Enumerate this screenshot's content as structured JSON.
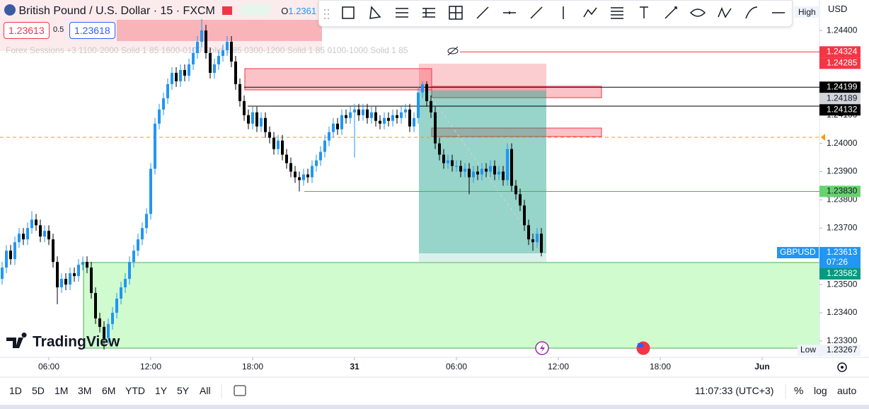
{
  "header": {
    "symbol": "British Pound / U.S. Dollar · 15 · FXCM",
    "open_label": "O",
    "open_value": "1.2361",
    "sell_price": "1.23613",
    "spread": "0.5",
    "buy_price": "1.23618",
    "indicator": "Forex Sessions +3 1100-2000 Solid 1 85 1600-0100 Solid 1 85 0300-1200 Solid 1 85 0100-1000 Solid 1 85",
    "currency": "USD",
    "high_label": "High"
  },
  "logo": "TradingView",
  "bottom_bar": {
    "ranges": [
      "1D",
      "5D",
      "1M",
      "3M",
      "6M",
      "YTD",
      "1Y",
      "5Y",
      "All"
    ],
    "clock": "11:07:33 (UTC+3)",
    "percent": "%",
    "log": "log",
    "auto": "auto"
  },
  "chart_data": {
    "type": "candlestick",
    "symbol": "GBPUSD",
    "countdown": "07:26",
    "low_label": "Low",
    "up_color": "#2196f3",
    "down_color": "#000000",
    "x": [
      3.25,
      3.5,
      3.75,
      4,
      4.25,
      4.5,
      4.75,
      5,
      5.25,
      5.5,
      5.75,
      6,
      6.25,
      6.5,
      6.75,
      7,
      7.25,
      7.5,
      7.75,
      8,
      8.25,
      8.5,
      8.75,
      9,
      9.25,
      9.5,
      9.75,
      10,
      10.25,
      10.5,
      10.75,
      11,
      11.25,
      11.5,
      11.75,
      12,
      12.25,
      12.5,
      12.75,
      13,
      13.25,
      13.5,
      13.75,
      14,
      14.25,
      14.5,
      14.75,
      15,
      15.25,
      15.5,
      15.75,
      16,
      16.25,
      16.5,
      16.75,
      17,
      17.25,
      17.5,
      17.75,
      18,
      18.25,
      18.5,
      18.75,
      19,
      19.25,
      19.5,
      19.75,
      20,
      20.25,
      20.5,
      20.75,
      21,
      21.25,
      21.5,
      21.75,
      22,
      22.25,
      22.5,
      22.75,
      23,
      23.25,
      23.5,
      23.75,
      24,
      24.25,
      24.5,
      24.75,
      25,
      25.25,
      25.5,
      25.75,
      26,
      26.25,
      26.5,
      26.75,
      27,
      27.25,
      27.5,
      27.75,
      28,
      28.25,
      28.5,
      28.75,
      29,
      29.25,
      29.5,
      29.75,
      30,
      30.25,
      30.5,
      30.75,
      31,
      31.25,
      31.5,
      31.75,
      32,
      32.25,
      32.5,
      32.75,
      33,
      33.25,
      33.5,
      33.75,
      34,
      34.25,
      34.5,
      34.75,
      35
    ],
    "open": [
      1.2352,
      1.2356,
      1.2362,
      1.2359,
      1.2365,
      1.2368,
      1.2366,
      1.237,
      1.2373,
      1.2371,
      1.2367,
      1.2369,
      1.2366,
      1.2358,
      1.2349,
      1.2352,
      1.235,
      1.2354,
      1.2353,
      1.2357,
      1.2358,
      1.2356,
      1.2347,
      1.2338,
      1.2335,
      1.2331,
      1.2336,
      1.234,
      1.2345,
      1.2349,
      1.2352,
      1.2358,
      1.2362,
      1.2366,
      1.237,
      1.2375,
      1.2391,
      1.2407,
      1.2412,
      1.2416,
      1.2421,
      1.2425,
      1.2422,
      1.2426,
      1.2424,
      1.2428,
      1.2432,
      1.2436,
      1.244,
      1.2432,
      1.2425,
      1.2428,
      1.2431,
      1.2433,
      1.2436,
      1.2429,
      1.2421,
      1.2415,
      1.241,
      1.2407,
      1.2411,
      1.2406,
      1.2409,
      1.2404,
      1.2402,
      1.2398,
      1.2401,
      1.2396,
      1.2393,
      1.239,
      1.2388,
      1.2387,
      1.2389,
      1.2388,
      1.2392,
      1.2394,
      1.2397,
      1.2401,
      1.2404,
      1.2407,
      1.2405,
      1.241,
      1.2409,
      1.2411,
      1.2412,
      1.241,
      1.2412,
      1.2409,
      1.2411,
      1.2408,
      1.2407,
      1.2409,
      1.2408,
      1.241,
      1.2409,
      1.2411,
      1.2412,
      1.2406,
      1.2409,
      1.2418,
      1.2421,
      1.2415,
      1.2411,
      1.24,
      1.2396,
      1.2393,
      1.2394,
      1.2392,
      1.2392,
      1.239,
      1.2391,
      1.2388,
      1.239,
      1.2389,
      1.2391,
      1.239,
      1.2392,
      1.2389,
      1.239,
      1.2387,
      1.2398,
      1.2385,
      1.2382,
      1.2378,
      1.2371,
      1.2366,
      1.2365,
      1.2368
    ],
    "high": [
      1.2358,
      1.2364,
      1.2364,
      1.2367,
      1.237,
      1.237,
      1.2372,
      1.2376,
      1.2375,
      1.2373,
      1.2371,
      1.2371,
      1.2368,
      1.236,
      1.2354,
      1.2354,
      1.2356,
      1.2356,
      1.2359,
      1.236,
      1.236,
      1.2358,
      1.2349,
      1.234,
      1.2337,
      1.2338,
      1.2342,
      1.2347,
      1.2351,
      1.2354,
      1.236,
      1.2364,
      1.2368,
      1.2372,
      1.2377,
      1.2393,
      1.2409,
      1.2414,
      1.2418,
      1.2423,
      1.2427,
      1.2427,
      1.2428,
      1.2428,
      1.243,
      1.2434,
      1.2438,
      1.2444,
      1.2442,
      1.2434,
      1.243,
      1.2433,
      1.2435,
      1.2438,
      1.2438,
      1.2431,
      1.2423,
      1.2417,
      1.2412,
      1.2413,
      1.2413,
      1.2411,
      1.2411,
      1.2406,
      1.2404,
      1.2403,
      1.2403,
      1.2398,
      1.2395,
      1.2392,
      1.239,
      1.2391,
      1.2391,
      1.2394,
      1.2396,
      1.2399,
      1.2403,
      1.2406,
      1.2409,
      1.2409,
      1.2412,
      1.2412,
      1.2413,
      1.2414,
      1.2414,
      1.2414,
      1.2414,
      1.2413,
      1.2413,
      1.241,
      1.2411,
      1.2411,
      1.2412,
      1.2412,
      1.2413,
      1.2414,
      1.2414,
      1.2411,
      1.242,
      1.2422,
      1.2422,
      1.2417,
      1.2413,
      1.2402,
      1.2398,
      1.2396,
      1.2396,
      1.2394,
      1.2394,
      1.2393,
      1.2393,
      1.2392,
      1.2392,
      1.2393,
      1.2393,
      1.2394,
      1.2394,
      1.2392,
      1.2392,
      1.24,
      1.24,
      1.2387,
      1.2384,
      1.238,
      1.2373,
      1.2368,
      1.237,
      1.237
    ],
    "low": [
      1.235,
      1.2354,
      1.2357,
      1.2357,
      1.2363,
      1.2364,
      1.2364,
      1.2368,
      1.2369,
      1.2365,
      1.2365,
      1.2364,
      1.2356,
      1.2343,
      1.2347,
      1.2348,
      1.2348,
      1.2351,
      1.2351,
      1.2355,
      1.2354,
      1.2345,
      1.2336,
      1.2333,
      1.2327,
      1.2329,
      1.2334,
      1.2338,
      1.2343,
      1.2347,
      1.235,
      1.2356,
      1.236,
      1.2364,
      1.2368,
      1.2373,
      1.2389,
      1.2405,
      1.241,
      1.2414,
      1.2419,
      1.242,
      1.242,
      1.2422,
      1.2422,
      1.2426,
      1.243,
      1.2434,
      1.243,
      1.2423,
      1.2423,
      1.2426,
      1.2429,
      1.2431,
      1.2427,
      1.2419,
      1.2413,
      1.2408,
      1.2405,
      1.2405,
      1.2404,
      1.2404,
      1.2402,
      1.24,
      1.2396,
      1.2396,
      1.2394,
      1.2391,
      1.2388,
      1.2386,
      1.2383,
      1.2385,
      1.2386,
      1.2386,
      1.239,
      1.2392,
      1.2395,
      1.2399,
      1.2402,
      1.2403,
      1.2403,
      1.2407,
      1.2407,
      1.2395,
      1.2408,
      1.2408,
      1.2407,
      1.2407,
      1.2406,
      1.2405,
      1.2405,
      1.2406,
      1.2406,
      1.2407,
      1.2407,
      1.2409,
      1.2404,
      1.2404,
      1.2407,
      1.2416,
      1.2413,
      1.2409,
      1.2398,
      1.2394,
      1.2391,
      1.2391,
      1.239,
      1.239,
      1.2388,
      1.2388,
      1.2382,
      1.2386,
      1.2387,
      1.2387,
      1.2388,
      1.2388,
      1.2387,
      1.2387,
      1.2385,
      1.2385,
      1.2383,
      1.238,
      1.2376,
      1.2369,
      1.2364,
      1.2362,
      1.2363,
      1.236
    ],
    "close": [
      1.2356,
      1.2362,
      1.2359,
      1.2365,
      1.2368,
      1.2366,
      1.237,
      1.2373,
      1.2371,
      1.2367,
      1.2369,
      1.2366,
      1.2358,
      1.2349,
      1.2352,
      1.235,
      1.2354,
      1.2353,
      1.2357,
      1.2358,
      1.2356,
      1.2347,
      1.2338,
      1.2335,
      1.2331,
      1.2336,
      1.234,
      1.2345,
      1.2349,
      1.2352,
      1.2358,
      1.2362,
      1.2366,
      1.237,
      1.2375,
      1.2391,
      1.2407,
      1.2412,
      1.2416,
      1.2421,
      1.2425,
      1.2422,
      1.2426,
      1.2424,
      1.2428,
      1.2432,
      1.2436,
      1.244,
      1.2432,
      1.2425,
      1.2428,
      1.2431,
      1.2433,
      1.2436,
      1.2429,
      1.2421,
      1.2415,
      1.241,
      1.2407,
      1.2411,
      1.2406,
      1.2409,
      1.2404,
      1.2402,
      1.2398,
      1.2401,
      1.2396,
      1.2393,
      1.239,
      1.2388,
      1.2387,
      1.2389,
      1.2388,
      1.2392,
      1.2394,
      1.2397,
      1.2401,
      1.2404,
      1.2407,
      1.2405,
      1.241,
      1.2409,
      1.2411,
      1.2412,
      1.241,
      1.2412,
      1.2409,
      1.2411,
      1.2408,
      1.2407,
      1.2409,
      1.2408,
      1.241,
      1.2409,
      1.2411,
      1.2412,
      1.2406,
      1.2409,
      1.2418,
      1.2421,
      1.2415,
      1.2411,
      1.24,
      1.2396,
      1.2393,
      1.2394,
      1.2392,
      1.2392,
      1.239,
      1.2391,
      1.2388,
      1.239,
      1.2389,
      1.2391,
      1.239,
      1.2392,
      1.2389,
      1.239,
      1.2387,
      1.2398,
      1.2385,
      1.2382,
      1.2378,
      1.2371,
      1.2366,
      1.2365,
      1.2368,
      1.23613
    ],
    "xlim": [
      3.125,
      51.375
    ],
    "xticks": [
      {
        "value": 6,
        "label": "06:00"
      },
      {
        "value": 12,
        "label": "12:00"
      },
      {
        "value": 18,
        "label": "18:00"
      },
      {
        "value": 24,
        "label": "31"
      },
      {
        "value": 30,
        "label": "06:00"
      },
      {
        "value": 36,
        "label": "12:00"
      },
      {
        "value": 42,
        "label": "18:00"
      },
      {
        "value": 48,
        "label": "Jun"
      }
    ],
    "ylim": [
      1.23242,
      1.24508
    ],
    "yticks": [
      {
        "value": 1.244,
        "label": "1.24400"
      },
      {
        "value": 1.241,
        "label": "1.24100"
      },
      {
        "value": 1.24,
        "label": "1.24000"
      },
      {
        "value": 1.239,
        "label": "1.23900"
      },
      {
        "value": 1.238,
        "label": "1.23800"
      },
      {
        "value": 1.237,
        "label": "1.23700"
      },
      {
        "value": 1.235,
        "label": "1.23500"
      },
      {
        "value": 1.234,
        "label": "1.23400"
      },
      {
        "value": 1.233,
        "label": "1.23300"
      }
    ],
    "price_lines": [
      {
        "value": 1.24324,
        "label": "1.24324",
        "color": "#f23645",
        "text_color": "#ffffff"
      },
      {
        "value": 1.24285,
        "label": "1.24285",
        "color": "#f23645",
        "text_color": "#ffffff"
      },
      {
        "value": 1.24199,
        "label": "1.24199",
        "color": "#000000",
        "text_color": "#ffffff"
      },
      {
        "value": 1.24189,
        "label": "1.24189",
        "color": "#d1d4dc",
        "text_color": "#131722"
      },
      {
        "value": 1.24132,
        "label": "1.24132",
        "color": "#000000",
        "text_color": "#ffffff"
      },
      {
        "value": 1.2383,
        "label": "1.23830",
        "color": "#66d36e",
        "text_color": "#131722"
      },
      {
        "value": 1.23613,
        "label": "1.23613",
        "color": "#2196f3",
        "text_color": "#ffffff"
      },
      {
        "value": 1.23582,
        "label": "1.23582",
        "color": "#089981",
        "text_color": "#ffffff"
      },
      {
        "value": 1.23267,
        "label": "1.23267",
        "color": "#f0f3fa",
        "text_color": "#131722"
      }
    ]
  }
}
